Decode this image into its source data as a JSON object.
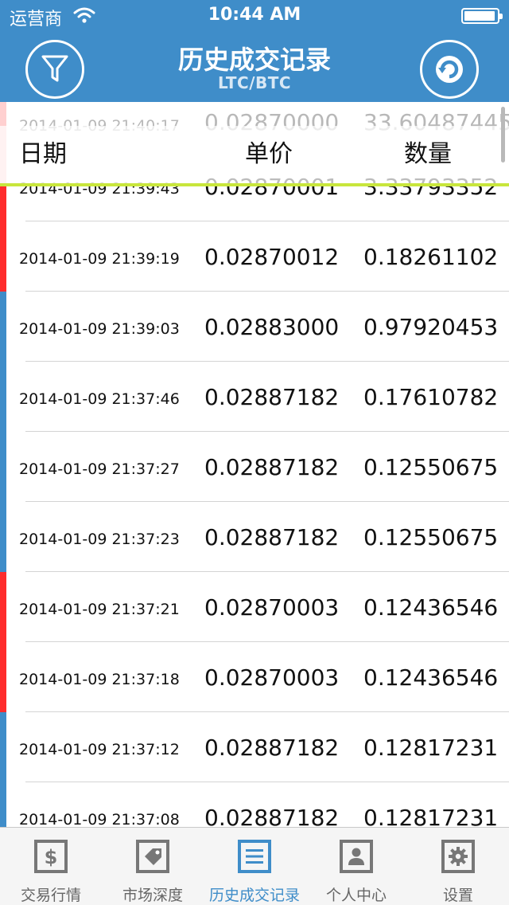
{
  "status_bar": {
    "carrier": "运营商",
    "time": "10:44 AM"
  },
  "nav": {
    "title": "历史成交记录",
    "subtitle": "LTC/BTC",
    "filter_icon": "filter-icon",
    "refresh_icon": "refresh-icon"
  },
  "columns": {
    "date": "日期",
    "price": "单价",
    "amount": "数量"
  },
  "trades": [
    {
      "date": "2014-01-09 21:40:17",
      "price": "0.02870000",
      "amount": "33.60487445",
      "side": "sell"
    },
    {
      "date": "2014-01-09 21:39:43",
      "price": "0.02870001",
      "amount": "3.33793352",
      "side": "sell"
    },
    {
      "date": "2014-01-09 21:39:19",
      "price": "0.02870012",
      "amount": "0.18261102",
      "side": "sell"
    },
    {
      "date": "2014-01-09 21:39:03",
      "price": "0.02883000",
      "amount": "0.97920453",
      "side": "buy"
    },
    {
      "date": "2014-01-09 21:37:46",
      "price": "0.02887182",
      "amount": "0.17610782",
      "side": "buy"
    },
    {
      "date": "2014-01-09 21:37:27",
      "price": "0.02887182",
      "amount": "0.12550675",
      "side": "buy"
    },
    {
      "date": "2014-01-09 21:37:23",
      "price": "0.02887182",
      "amount": "0.12550675",
      "side": "buy"
    },
    {
      "date": "2014-01-09 21:37:21",
      "price": "0.02870003",
      "amount": "0.12436546",
      "side": "sell"
    },
    {
      "date": "2014-01-09 21:37:18",
      "price": "0.02870003",
      "amount": "0.12436546",
      "side": "sell"
    },
    {
      "date": "2014-01-09 21:37:12",
      "price": "0.02887182",
      "amount": "0.12817231",
      "side": "buy"
    },
    {
      "date": "2014-01-09 21:37:08",
      "price": "0.02887182",
      "amount": "0.12817231",
      "side": "buy"
    }
  ],
  "colors": {
    "header_bg": "#3f8dc9",
    "sell_bar": "#ff2d2d",
    "buy_bar": "#3f8dc9",
    "pull_line": "#c8e63c",
    "tab_active": "#3f8dc9"
  },
  "tabs": [
    {
      "label": "交易行情",
      "icon": "dollar-icon",
      "active": false
    },
    {
      "label": "市场深度",
      "icon": "tag-icon",
      "active": false
    },
    {
      "label": "历史成交记录",
      "icon": "list-icon",
      "active": true
    },
    {
      "label": "个人中心",
      "icon": "person-icon",
      "active": false
    },
    {
      "label": "设置",
      "icon": "gear-icon",
      "active": false
    }
  ]
}
